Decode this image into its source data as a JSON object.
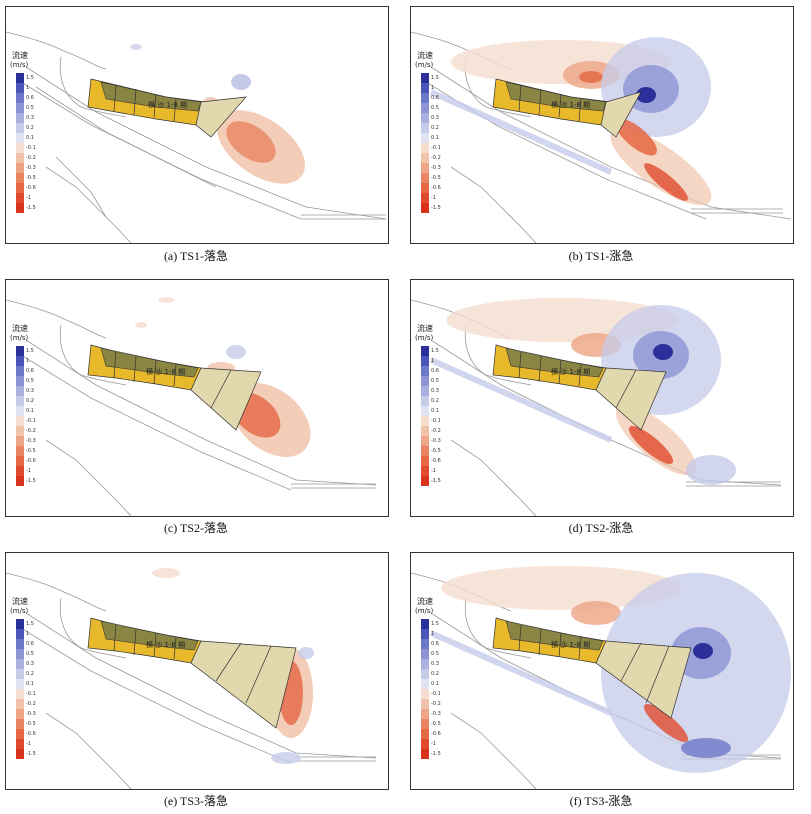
{
  "legend": {
    "title": "流速",
    "unit": "(m/s)",
    "labels": [
      "1.5",
      "1",
      "0.6",
      "0.5",
      "0.3",
      "0.2",
      "0.1",
      "-0.1",
      "-0.2",
      "-0.3",
      "-0.5",
      "-0.6",
      "-1",
      "-1.5"
    ],
    "colors": [
      "#2a2f9a",
      "#4a55b8",
      "#6d78c8",
      "#8c95d4",
      "#aab1de",
      "#c6cbe8",
      "#e0e3f2",
      "#f5ddd0",
      "#f1c3aa",
      "#eda585",
      "#e98560",
      "#e56743",
      "#e04b2e",
      "#d9331d"
    ]
  },
  "island_label": "横 沙 1-8 期",
  "panels": [
    {
      "caption": "(a)  TS1-落急"
    },
    {
      "caption": "(b)  TS1-涨急"
    },
    {
      "caption": "(c)  TS2-落急"
    },
    {
      "caption": "(d)  TS2-涨急"
    },
    {
      "caption": "(e)  TS3-落急"
    },
    {
      "caption": "(f)  TS3-涨急"
    }
  ]
}
